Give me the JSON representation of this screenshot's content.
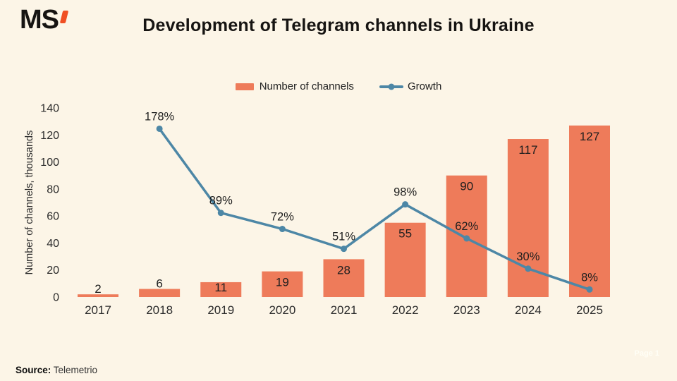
{
  "page": {
    "background": "#FCF5E7",
    "logo": {
      "text": "MS",
      "accent_color": "#F04F23"
    },
    "title": "Development of Telegram channels in Ukraine",
    "source_label": "Source:",
    "source_value": "Telemetrio",
    "watermark": "Page 1"
  },
  "legend": {
    "bars_label": "Number of channels",
    "line_label": "Growth"
  },
  "chart_data": {
    "type": "bar",
    "subtype": "bar-line-combo",
    "title": "Development of Telegram channels in Ukraine",
    "categories": [
      "2017",
      "2018",
      "2019",
      "2020",
      "2021",
      "2022",
      "2023",
      "2024",
      "2025"
    ],
    "series": [
      {
        "name": "Number of channels",
        "type": "bar",
        "axis": "left",
        "values": [
          2,
          6,
          11,
          19,
          28,
          55,
          90,
          117,
          127
        ],
        "color": "#EE7B5A"
      },
      {
        "name": "Growth",
        "type": "line",
        "axis": "right",
        "unit": "%",
        "values": [
          null,
          178,
          89,
          72,
          51,
          98,
          62,
          30,
          8
        ],
        "color": "#4D87A6"
      }
    ],
    "xlabel": "",
    "ylabel": "Number of channels, thousands",
    "y_ticks": [
      0,
      20,
      40,
      60,
      80,
      100,
      120,
      140
    ],
    "ylim": [
      0,
      140
    ],
    "y2lim": [
      0,
      200
    ],
    "grid": false,
    "legend_position": "top-center",
    "label_color": "#1e1e1e",
    "tick_color": "#2b2b2b"
  }
}
